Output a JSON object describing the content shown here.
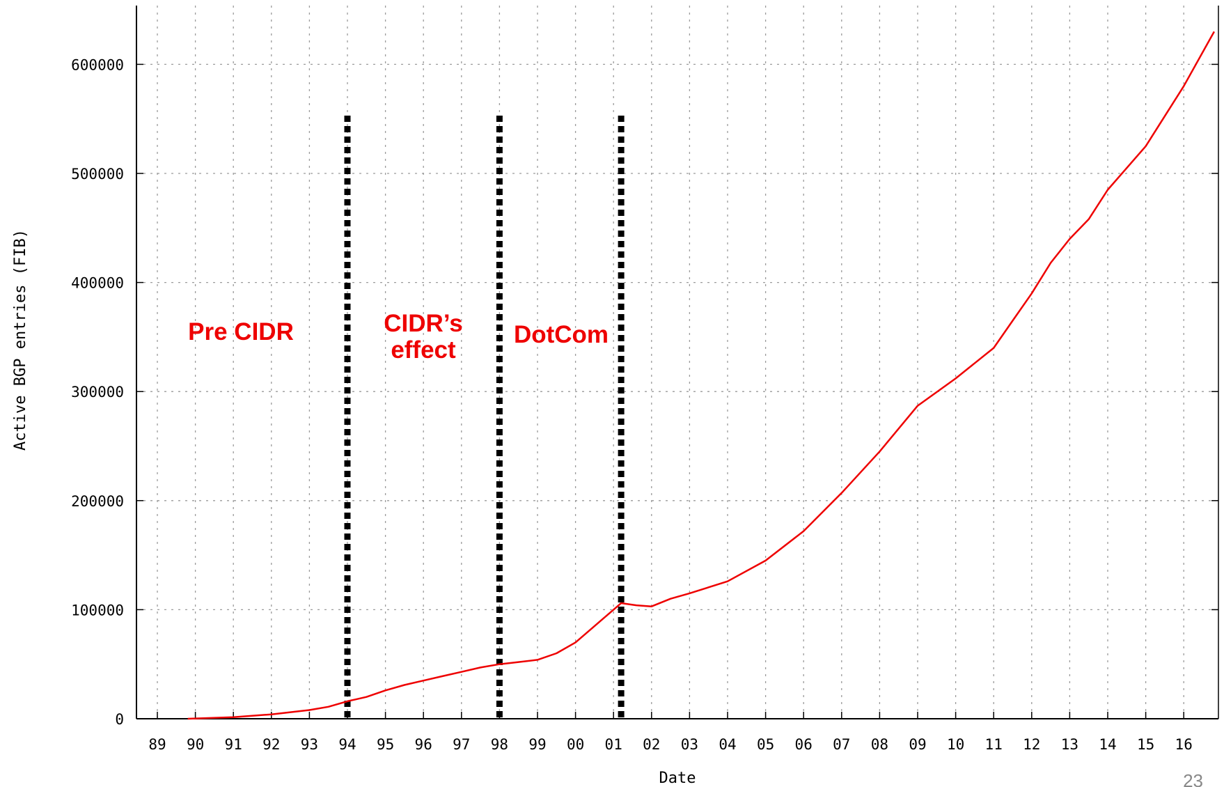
{
  "chart_data": {
    "type": "line",
    "xlabel": "Date",
    "ylabel": "Active BGP entries (FIB)",
    "x_tick_labels": [
      "89",
      "90",
      "91",
      "92",
      "93",
      "94",
      "95",
      "96",
      "97",
      "98",
      "99",
      "00",
      "01",
      "02",
      "03",
      "04",
      "05",
      "06",
      "07",
      "08",
      "09",
      "10",
      "11",
      "12",
      "13",
      "14",
      "15",
      "16"
    ],
    "x_range": [
      1988.55,
      2016.8
    ],
    "y_tick_labels": [
      "0",
      "100000",
      "200000",
      "300000",
      "400000",
      "500000",
      "600000"
    ],
    "ylim": [
      0,
      600000
    ],
    "grid": true,
    "line_color": "#ee0000",
    "series": [
      {
        "x": [
          1989.8,
          1991.0,
          1992.0,
          1993.0,
          1993.5,
          1994.0,
          1994.5,
          1995.0,
          1995.5,
          1996.0,
          1996.5,
          1997.0,
          1997.5,
          1998.0,
          1998.5,
          1999.0,
          1999.5,
          2000.0,
          2000.5,
          2001.0,
          2001.2,
          2001.6,
          2002.0,
          2002.5,
          2003.0,
          2004.0,
          2005.0,
          2006.0,
          2007.0,
          2008.0,
          2009.0,
          2010.0,
          2011.0,
          2011.5,
          2012.0,
          2012.5,
          2013.0,
          2013.5,
          2014.0,
          2015.0,
          2016.0,
          2016.8
        ],
        "y": [
          0,
          1500,
          4000,
          8000,
          11000,
          16000,
          20000,
          26000,
          31000,
          35000,
          39000,
          43000,
          47000,
          50000,
          52000,
          54000,
          60000,
          70000,
          85000,
          100000,
          106000,
          104000,
          103000,
          110000,
          115000,
          126000,
          145000,
          172000,
          207000,
          245000,
          287000,
          312000,
          340000,
          365000,
          390000,
          418000,
          440000,
          458000,
          485000,
          525000,
          580000,
          630000
        ]
      }
    ],
    "markers": [
      {
        "x": 1994.0
      },
      {
        "x": 1998.0
      },
      {
        "x": 2001.2
      }
    ],
    "annotations": [
      {
        "lines": [
          "Pre CIDR"
        ]
      },
      {
        "lines": [
          "CIDR’s",
          "effect"
        ]
      },
      {
        "lines": [
          "DotCom"
        ]
      }
    ]
  },
  "page_number": "23"
}
